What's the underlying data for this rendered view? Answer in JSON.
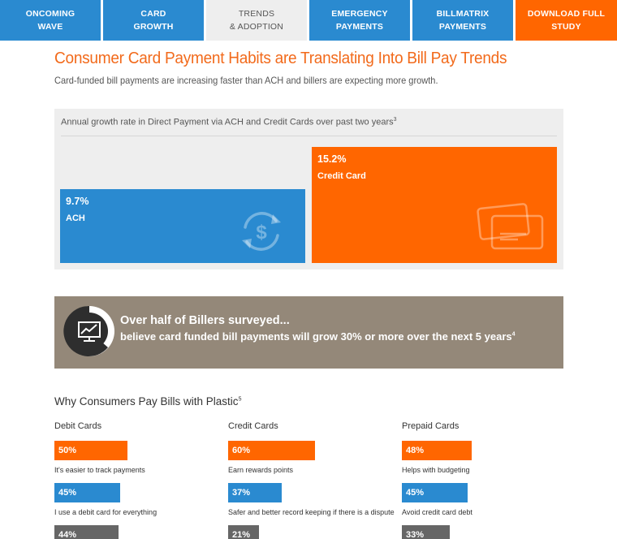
{
  "nav": {
    "tabs": [
      {
        "line1": "Oncoming",
        "line2": "Wave"
      },
      {
        "line1": "Card",
        "line2": "Growth"
      },
      {
        "line1": "Trends",
        "line2": "& Adoption"
      },
      {
        "line1": "Emergency",
        "line2": "Payments"
      },
      {
        "line1": "BillMatrix",
        "line2": "Payments"
      },
      {
        "line1": "Download Full",
        "line2": "Study"
      }
    ]
  },
  "header": {
    "title": "Consumer Card Payment Habits are Translating Into Bill Pay Trends",
    "subtitle": "Card-funded bill payments are increasing faster than ACH and billers are expecting more growth."
  },
  "growth_chart": {
    "caption": "Annual growth rate in Direct Payment via ACH and Credit Cards over past two years",
    "caption_footnote": "3",
    "ach": {
      "value_text": "9.7%",
      "label": "ACH",
      "value": 9.7
    },
    "credit": {
      "value_text": "15.2%",
      "label": "Credit Card",
      "value": 15.2
    },
    "colors": {
      "ach": "#2a8ad0",
      "credit": "#ff6600"
    }
  },
  "banner": {
    "headline": "Over half of Billers surveyed...",
    "body": "believe card funded bill payments will grow 30% or more over the next 5 years",
    "footnote": "4"
  },
  "why": {
    "title": "Why Consumers Pay Bills with Plastic",
    "footnote": "5",
    "columns": [
      {
        "heading": "Debit Cards",
        "items": [
          {
            "pct": "50%",
            "value": 50,
            "reason": "It's easier to track payments"
          },
          {
            "pct": "45%",
            "value": 45,
            "reason": "I use a debit card for everything"
          },
          {
            "pct": "44%",
            "value": 44,
            "reason": ""
          }
        ]
      },
      {
        "heading": "Credit Cards",
        "items": [
          {
            "pct": "60%",
            "value": 60,
            "reason": "Earn rewards points"
          },
          {
            "pct": "37%",
            "value": 37,
            "reason": "Safer and better record keeping if there is a dispute"
          },
          {
            "pct": "21%",
            "value": 21,
            "reason": ""
          }
        ]
      },
      {
        "heading": "Prepaid Cards",
        "items": [
          {
            "pct": "48%",
            "value": 48,
            "reason": "Helps with budgeting"
          },
          {
            "pct": "45%",
            "value": 45,
            "reason": "Avoid credit card debt"
          },
          {
            "pct": "33%",
            "value": 33,
            "reason": ""
          }
        ]
      }
    ]
  },
  "icons": {
    "ach_bar": "dollar-cycle-icon",
    "credit_bar": "credit-cards-icon",
    "banner": "monitor-trend-icon"
  }
}
